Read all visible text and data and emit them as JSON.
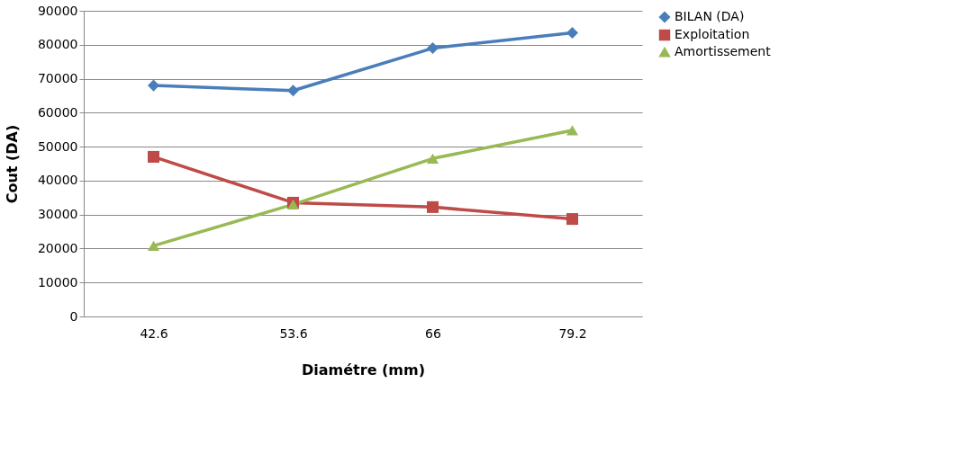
{
  "chart_data": {
    "type": "line",
    "xlabel": "Diamétre (mm)",
    "ylabel": "Cout (DA)",
    "categories": [
      "42.6",
      "53.6",
      "66",
      "79.2"
    ],
    "series": [
      {
        "name": "BILAN (DA)",
        "color": "#4a7ebb",
        "marker": "diamond",
        "values": [
          68000,
          66500,
          79000,
          83500
        ]
      },
      {
        "name": "Exploitation",
        "color": "#be4b48",
        "marker": "square",
        "values": [
          47000,
          33500,
          32200,
          28700
        ]
      },
      {
        "name": "Amortissement",
        "color": "#98b954",
        "marker": "triangle",
        "values": [
          20800,
          33000,
          46500,
          54800
        ]
      }
    ],
    "ylim": [
      0,
      90000
    ],
    "yticks": [
      0,
      10000,
      20000,
      30000,
      40000,
      50000,
      60000,
      70000,
      80000,
      90000
    ],
    "grid": "y",
    "legend": "right",
    "line_style": "solid"
  }
}
